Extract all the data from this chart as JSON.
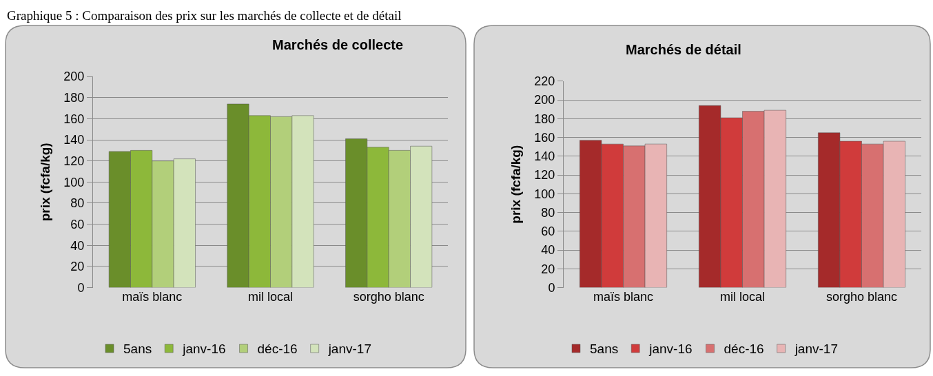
{
  "chart_data": [
    {
      "type": "bar",
      "title": "Marchés de collecte",
      "ylabel": "prix (fcfa/kg)",
      "annotations": [
        "Graphique 5 : Comparaison des prix sur les marchés de collecte et de détail"
      ],
      "categories": [
        "maïs blanc",
        "mil local",
        "sorgho blanc"
      ],
      "series": [
        {
          "name": "5ans",
          "color": "#6a8e2a",
          "values": [
            129,
            174,
            141
          ]
        },
        {
          "name": "janv-16",
          "color": "#8db83a",
          "values": [
            130,
            163,
            133
          ]
        },
        {
          "name": "déc-16",
          "color": "#b2cf7a",
          "values": [
            120,
            162,
            130
          ]
        },
        {
          "name": "janv-17",
          "color": "#d3e3bb",
          "values": [
            122,
            163,
            134
          ]
        }
      ],
      "ylim": [
        0,
        200
      ],
      "yticks": [
        0,
        20,
        40,
        60,
        80,
        100,
        120,
        140,
        160,
        180,
        200
      ],
      "grid": "y",
      "legend": "bottom"
    },
    {
      "type": "bar",
      "title": "Marchés de détail",
      "ylabel": "prix (fcfa/kg)",
      "categories": [
        "maïs blanc",
        "mil local",
        "sorgho blanc"
      ],
      "series": [
        {
          "name": "5ans",
          "color": "#a52a2a",
          "values": [
            157,
            194,
            165
          ]
        },
        {
          "name": "janv-16",
          "color": "#d03b3b",
          "values": [
            153,
            181,
            156
          ]
        },
        {
          "name": "déc-16",
          "color": "#d77070",
          "values": [
            151,
            188,
            153
          ]
        },
        {
          "name": "janv-17",
          "color": "#e8b4b4",
          "values": [
            153,
            189,
            156
          ]
        }
      ],
      "ylim": [
        0,
        220
      ],
      "yticks": [
        0,
        20,
        40,
        60,
        80,
        100,
        120,
        140,
        160,
        180,
        200,
        220
      ],
      "grid": "y",
      "legend": "bottom"
    }
  ]
}
